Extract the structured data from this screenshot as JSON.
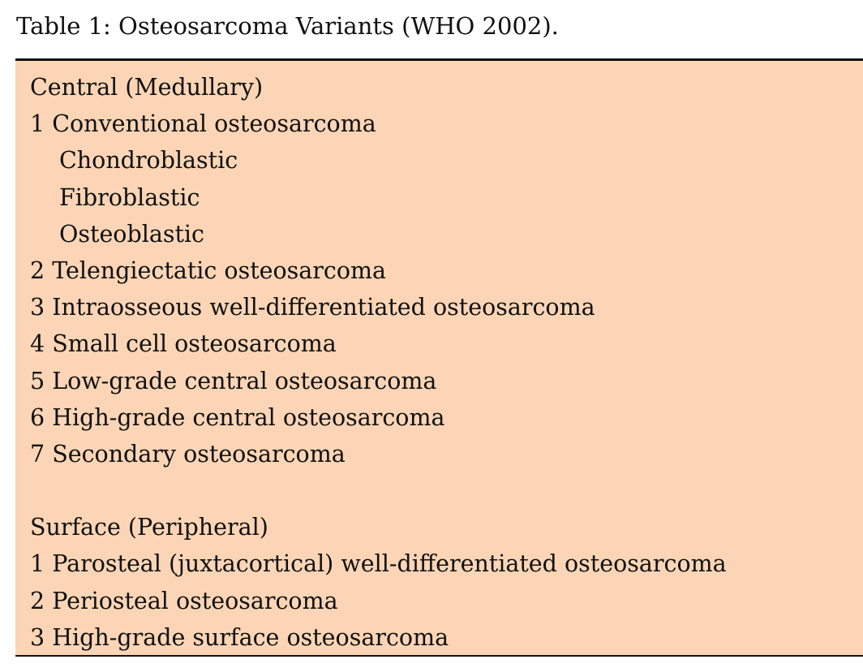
{
  "caption": "Table 1: Osteosarcoma Variants (WHO 2002).",
  "colors": {
    "table_background": "#fbd5b5",
    "rule": "#111111"
  },
  "rows": [
    {
      "text": "Central (Medullary)",
      "indent": false
    },
    {
      "text": "1 Conventional osteosarcoma",
      "indent": false
    },
    {
      "text": "Chondroblastic",
      "indent": true
    },
    {
      "text": "Fibroblastic",
      "indent": true
    },
    {
      "text": "Osteoblastic",
      "indent": true
    },
    {
      "text": "2 Telengiectatic osteosarcoma",
      "indent": false
    },
    {
      "text": "3 Intraosseous well-differentiated osteosarcoma",
      "indent": false
    },
    {
      "text": "4 Small cell osteosarcoma",
      "indent": false
    },
    {
      "text": "5 Low-grade central osteosarcoma",
      "indent": false
    },
    {
      "text": "6 High-grade central osteosarcoma",
      "indent": false
    },
    {
      "text": "7 Secondary osteosarcoma",
      "indent": false
    },
    {
      "text": "",
      "indent": false
    },
    {
      "text": "Surface (Peripheral)",
      "indent": false
    },
    {
      "text": "1 Parosteal (juxtacortical) well-differentiated osteosarcoma",
      "indent": false
    },
    {
      "text": "2 Periosteal osteosarcoma",
      "indent": false
    },
    {
      "text": "3 High-grade surface osteosarcoma",
      "indent": false
    }
  ]
}
